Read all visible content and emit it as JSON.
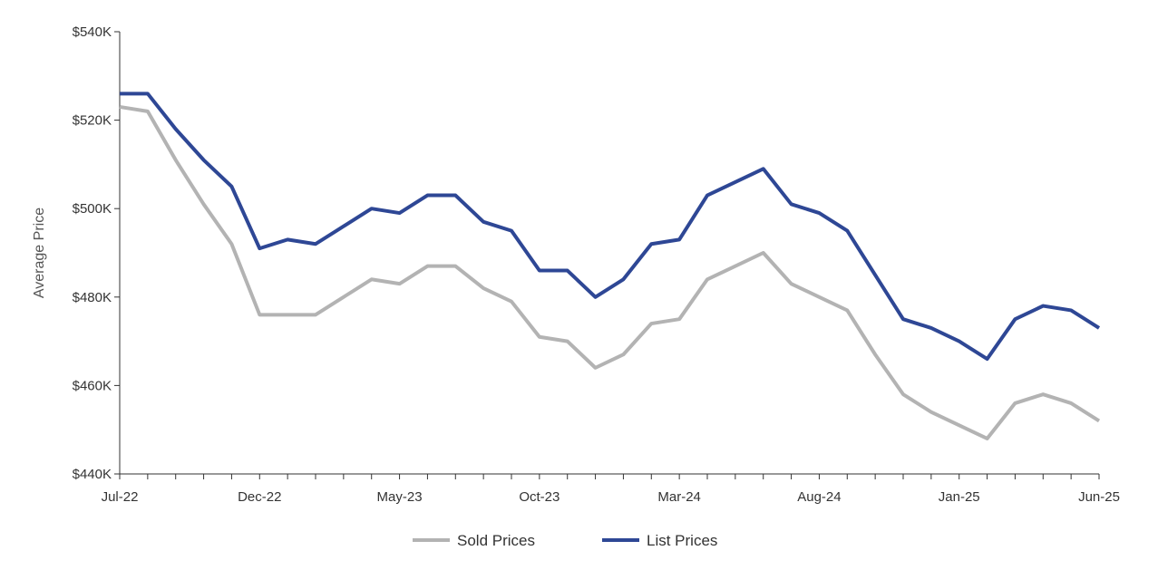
{
  "chart_data": {
    "type": "line",
    "title": "",
    "xlabel": "",
    "ylabel": "Average Price",
    "ylim": [
      440000,
      540000
    ],
    "yticks": [
      440000,
      460000,
      480000,
      500000,
      520000,
      540000
    ],
    "ytick_labels": [
      "$440K",
      "$460K",
      "$480K",
      "$500K",
      "$520K",
      "$540K"
    ],
    "x": [
      "Jul-22",
      "Aug-22",
      "Sep-22",
      "Oct-22",
      "Nov-22",
      "Dec-22",
      "Jan-23",
      "Feb-23",
      "Mar-23",
      "Apr-23",
      "May-23",
      "Jun-23",
      "Jul-23",
      "Aug-23",
      "Sep-23",
      "Oct-23",
      "Nov-23",
      "Dec-23",
      "Jan-24",
      "Feb-24",
      "Mar-24",
      "Apr-24",
      "May-24",
      "Jun-24",
      "Jul-24",
      "Aug-24",
      "Sep-24",
      "Oct-24",
      "Nov-24",
      "Dec-24",
      "Jan-25",
      "Feb-25",
      "Mar-25",
      "Apr-25",
      "May-25",
      "Jun-25"
    ],
    "xtick_labels": [
      "Jul-22",
      "Dec-22",
      "May-23",
      "Oct-23",
      "Mar-24",
      "Aug-24",
      "Jan-25",
      "Jun-25"
    ],
    "grid": false,
    "legend_position": "bottom-center",
    "series": [
      {
        "name": "Sold Prices",
        "color": "#b3b3b3",
        "values": [
          523000,
          522000,
          511000,
          501000,
          492000,
          476000,
          476000,
          476000,
          480000,
          484000,
          483000,
          487000,
          487000,
          482000,
          479000,
          471000,
          470000,
          464000,
          467000,
          474000,
          475000,
          484000,
          487000,
          490000,
          483000,
          480000,
          477000,
          467000,
          458000,
          454000,
          451000,
          448000,
          456000,
          458000,
          456000,
          452000
        ]
      },
      {
        "name": "List Prices",
        "color": "#2e4795",
        "values": [
          526000,
          526000,
          518000,
          511000,
          505000,
          491000,
          493000,
          492000,
          496000,
          500000,
          499000,
          503000,
          503000,
          497000,
          495000,
          486000,
          486000,
          480000,
          484000,
          492000,
          493000,
          503000,
          506000,
          509000,
          501000,
          499000,
          495000,
          485000,
          475000,
          473000,
          470000,
          466000,
          475000,
          478000,
          477000,
          473000
        ]
      }
    ]
  }
}
